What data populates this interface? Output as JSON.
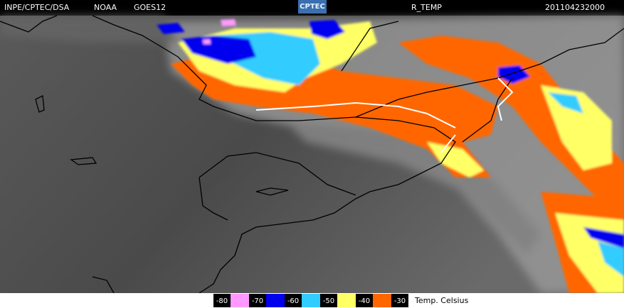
{
  "header": {
    "source": "INPE/CPTEC/DSA",
    "agency": "NOAA",
    "satellite": "GOES12",
    "logo": "CPTEC",
    "product": "R_TEMP",
    "timestamp": "201104232000"
  },
  "legend": {
    "unit": "Temp. Celsius",
    "items": [
      {
        "value": -80,
        "color": "#ff99ff"
      },
      {
        "value": -70,
        "color": "#0000ee"
      },
      {
        "value": -60,
        "color": "#33ccff"
      },
      {
        "value": -50,
        "color": "#ffff66"
      },
      {
        "value": -40,
        "color": "#ff6600"
      },
      {
        "value": -30,
        "color": null
      }
    ]
  }
}
